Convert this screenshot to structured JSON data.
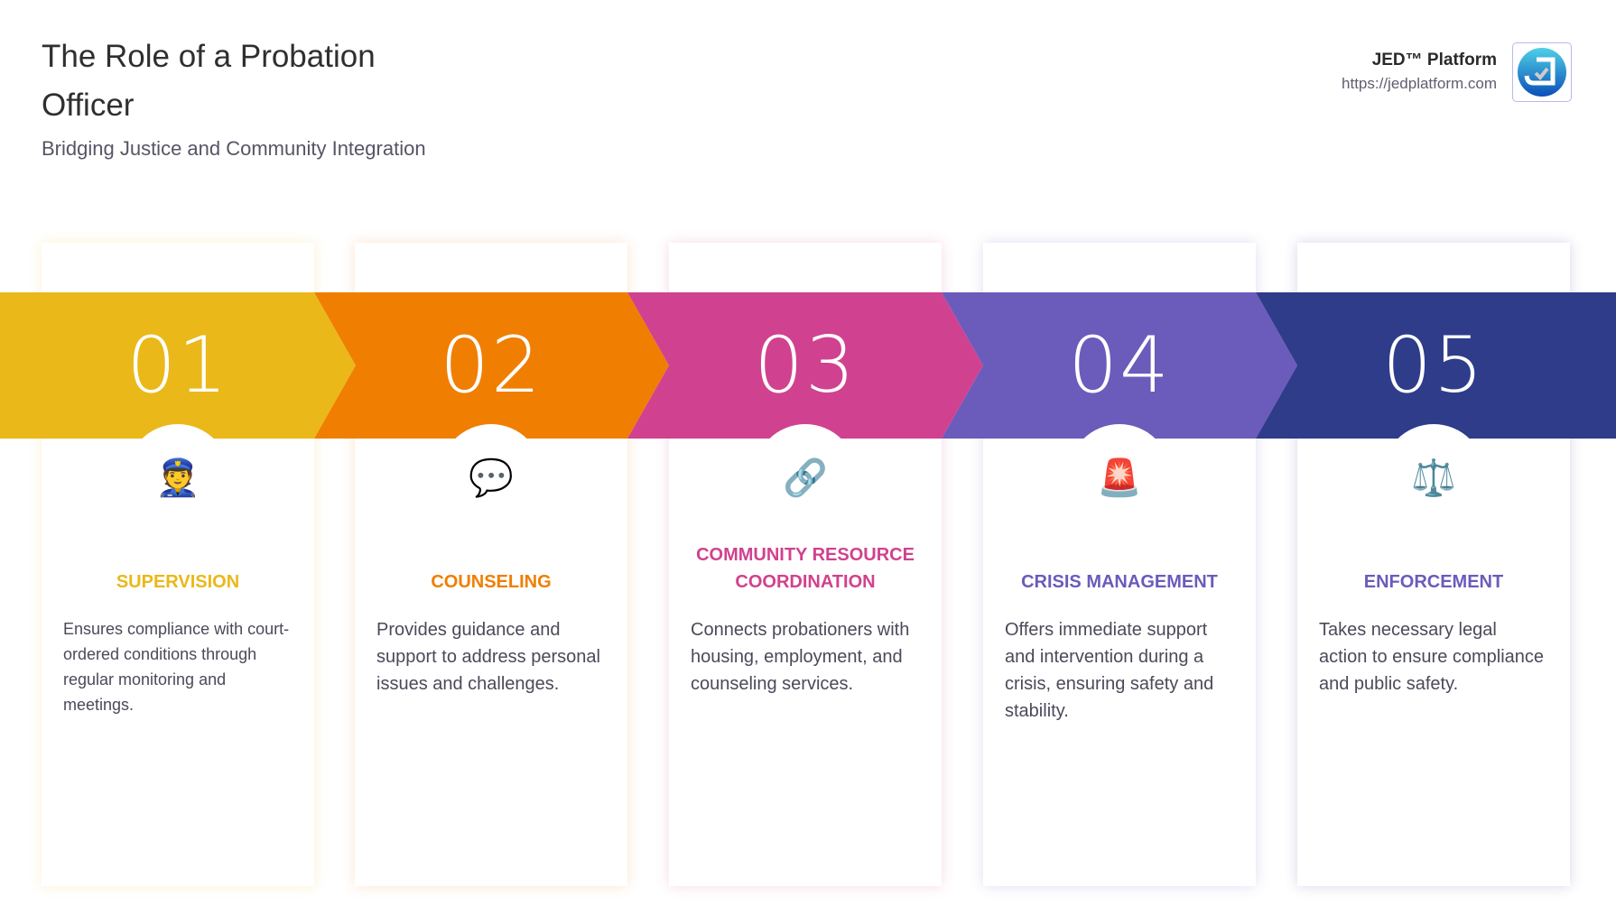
{
  "header": {
    "title": "The Role of a Probation Officer",
    "subtitle": "Bridging Justice and Community Integration"
  },
  "brand": {
    "name": "JED™ Platform",
    "url": "https://jedplatform.com",
    "logo_icon": "jed-checkmark-logo"
  },
  "steps": [
    {
      "number": "01",
      "icon": "police-officer-icon",
      "emoji": "👮",
      "title": "SUPERVISION",
      "description": "Ensures compliance with court-ordered conditions through regular monitoring and meetings.",
      "color": "#EAB818",
      "title_color": "#EAB818"
    },
    {
      "number": "02",
      "icon": "speech-bubble-icon",
      "emoji": "💬",
      "title": "COUNSELING",
      "description": "Provides guidance and support to address personal issues and challenges.",
      "color": "#F07E00",
      "title_color": "#F07E00"
    },
    {
      "number": "03",
      "icon": "link-icon",
      "emoji": "🔗",
      "title": "COMMUNITY RESOURCE COORDINATION",
      "description": "Connects probationers with housing, employment, and counseling services.",
      "color": "#D0428F",
      "title_color": "#D0428F"
    },
    {
      "number": "04",
      "icon": "siren-icon",
      "emoji": "🚨",
      "title": "CRISIS MANAGEMENT",
      "description": "Offers immediate support and intervention during a crisis, ensuring safety and stability.",
      "color": "#6B5BBB",
      "title_color": "#6B5BBB"
    },
    {
      "number": "05",
      "icon": "balance-scale-icon",
      "emoji": "⚖️",
      "title": "ENFORCEMENT",
      "description": "Takes necessary legal action to ensure compliance and public safety.",
      "color": "#2E3C8A",
      "title_color": "#6B5BBB"
    }
  ]
}
